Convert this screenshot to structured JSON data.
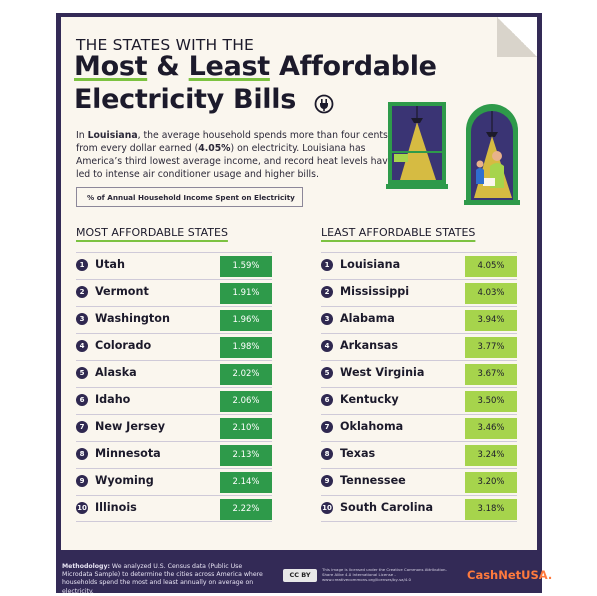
{
  "header": {
    "line1": "THE STATES WITH THE",
    "line2_highlight_a": "Most",
    "line2_mid": " & ",
    "line2_highlight_b": "Least",
    "line2_rest": " Affordable",
    "line3": "Electricity Bills"
  },
  "intro": {
    "p1": "In ",
    "state": "Louisiana",
    "p2": ", the average household spends more than four cents from every dollar earned (",
    "pct": "4.05%",
    "p3": ") on electricity. Louisiana has America’s third lowest average income, and record heat levels have led to intense air conditioner usage and higher bills."
  },
  "legend_label": "% of Annual Household Income Spent on Electricity",
  "most_affordable": {
    "heading": "MOST AFFORDABLE STATES",
    "rows": [
      {
        "rank": "1",
        "state": "Utah",
        "value": "1.59%"
      },
      {
        "rank": "2",
        "state": "Vermont",
        "value": "1.91%"
      },
      {
        "rank": "3",
        "state": "Washington",
        "value": "1.96%"
      },
      {
        "rank": "4",
        "state": "Colorado",
        "value": "1.98%"
      },
      {
        "rank": "5",
        "state": "Alaska",
        "value": "2.02%"
      },
      {
        "rank": "6",
        "state": "Idaho",
        "value": "2.06%"
      },
      {
        "rank": "7",
        "state": "New Jersey",
        "value": "2.10%"
      },
      {
        "rank": "8",
        "state": "Minnesota",
        "value": "2.13%"
      },
      {
        "rank": "9",
        "state": "Wyoming",
        "value": "2.14%"
      },
      {
        "rank": "10",
        "state": "Illinois",
        "value": "2.22%"
      }
    ]
  },
  "least_affordable": {
    "heading": "LEAST AFFORDABLE STATES",
    "rows": [
      {
        "rank": "1",
        "state": "Louisiana",
        "value": "4.05%"
      },
      {
        "rank": "2",
        "state": "Mississippi",
        "value": "4.03%"
      },
      {
        "rank": "3",
        "state": "Alabama",
        "value": "3.94%"
      },
      {
        "rank": "4",
        "state": "Arkansas",
        "value": "3.77%"
      },
      {
        "rank": "5",
        "state": "West Virginia",
        "value": "3.67%"
      },
      {
        "rank": "6",
        "state": "Kentucky",
        "value": "3.50%"
      },
      {
        "rank": "7",
        "state": "Oklahoma",
        "value": "3.46%"
      },
      {
        "rank": "8",
        "state": "Texas",
        "value": "3.24%"
      },
      {
        "rank": "9",
        "state": "Tennessee",
        "value": "3.20%"
      },
      {
        "rank": "10",
        "state": "South Carolina",
        "value": "3.18%"
      }
    ]
  },
  "footer": {
    "meth_label": "Methodology:",
    "meth_text": " We analyzed U.S. Census data (Public Use Microdata Sample) to determine the cities across America where households spend the most and least annually on average on electricity.",
    "cc_badge": "CC BY",
    "cc_text": "This image is licensed under the Creative Commons Attribution-Share Alike 4.0 International License - www.creativecommons.org/licenses/by-sa/4.0",
    "brand": "CashNetUSA."
  },
  "colors": {
    "frame": "#332a56",
    "paper": "#faf6ee",
    "most_value_bg": "#2e9a4a",
    "least_value_bg": "#a6d44c",
    "underline_accent": "#7cc241",
    "brand": "#ff7a3d"
  },
  "icons": [
    "plug-icon",
    "window-illustration",
    "lamp-icon",
    "person-illustration"
  ]
}
